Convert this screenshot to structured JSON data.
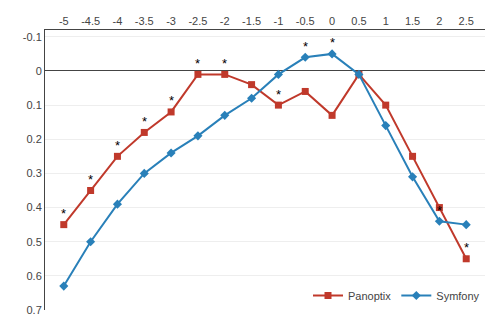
{
  "chart_data": {
    "type": "line",
    "x": [
      -5,
      -4.5,
      -4,
      -3.5,
      -3,
      -2.5,
      -2,
      -1.5,
      -1,
      -0.5,
      0,
      0.5,
      1,
      1.5,
      2,
      2.5
    ],
    "series": [
      {
        "name": "Panoptix",
        "color": "#c0392b",
        "marker": "square",
        "values": [
          0.45,
          0.35,
          0.25,
          0.18,
          0.12,
          0.01,
          0.01,
          0.04,
          0.1,
          0.06,
          0.13,
          0.01,
          0.1,
          0.25,
          0.4,
          0.55
        ]
      },
      {
        "name": "Symfony",
        "color": "#2980b9",
        "marker": "diamond",
        "values": [
          0.63,
          0.5,
          0.39,
          0.3,
          0.24,
          0.19,
          0.13,
          0.08,
          0.01,
          -0.04,
          -0.05,
          0.01,
          0.16,
          0.31,
          0.44,
          0.45
        ]
      }
    ],
    "xlim": [
      -5.35,
      2.85
    ],
    "xticks": [
      -5,
      -4.5,
      -4,
      -3.5,
      -3,
      -2.5,
      -2,
      -1.5,
      -1,
      -0.5,
      0,
      0.5,
      1,
      1.5,
      2,
      2.5
    ],
    "ylim": [
      0.7,
      -0.12
    ],
    "yticks": [
      -0.1,
      0,
      0.1,
      0.2,
      0.3,
      0.4,
      0.5,
      0.6,
      0.7
    ],
    "grid": "y",
    "legend": "lower right",
    "annotations": [
      {
        "series": "Panoptix",
        "x": -5,
        "text": "*"
      },
      {
        "series": "Panoptix",
        "x": -4.5,
        "text": "*"
      },
      {
        "series": "Panoptix",
        "x": -4,
        "text": "*"
      },
      {
        "series": "Panoptix",
        "x": -3.5,
        "text": "*"
      },
      {
        "series": "Panoptix",
        "x": -3,
        "text": "*"
      },
      {
        "series": "Panoptix",
        "x": -2.5,
        "text": "*"
      },
      {
        "series": "Panoptix",
        "x": -2,
        "text": "*"
      },
      {
        "series": "Panoptix",
        "x": -1,
        "text": "*"
      },
      {
        "series": "Panoptix",
        "x": 2.5,
        "text": "*"
      },
      {
        "series": "Symfony",
        "x": -0.5,
        "text": "*"
      },
      {
        "series": "Symfony",
        "x": 0,
        "text": "*"
      },
      {
        "series": "Symfony",
        "x": 2,
        "text": "*"
      }
    ]
  }
}
